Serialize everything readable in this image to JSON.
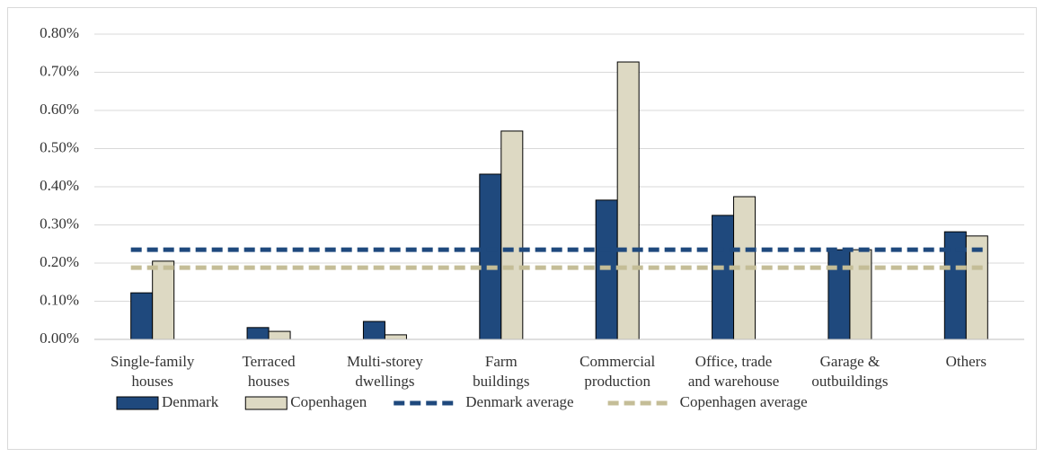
{
  "chart_data": {
    "type": "bar",
    "categories": [
      "Single-family\nhouses",
      "Terraced\nhouses",
      "Multi-storey\ndwellings",
      "Farm\nbuildings",
      "Commercial\nproduction",
      "Office, trade\nand warehouse",
      "Garage &\noutbuildings",
      "Others"
    ],
    "series": [
      {
        "name": "Denmark",
        "color": "#1f497d",
        "values": [
          0.122,
          0.031,
          0.047,
          0.433,
          0.365,
          0.325,
          0.235,
          0.282
        ]
      },
      {
        "name": "Copenhagen",
        "color": "#ddd9c3",
        "values": [
          0.205,
          0.021,
          0.012,
          0.546,
          0.727,
          0.374,
          0.235,
          0.271
        ]
      }
    ],
    "averages": [
      {
        "name": "Denmark average",
        "color": "#1f497d",
        "value": 0.235
      },
      {
        "name": "Copenhagen average",
        "color": "#c4bd97",
        "value": 0.188
      }
    ],
    "ylim": [
      0,
      0.8
    ],
    "yticks": [
      {
        "value": 0,
        "label": "0.00%"
      },
      {
        "value": 0.1,
        "label": "0.10%"
      },
      {
        "value": 0.2,
        "label": "0.20%"
      },
      {
        "value": 0.3,
        "label": "0.30%"
      },
      {
        "value": 0.4,
        "label": "0.40%"
      },
      {
        "value": 0.5,
        "label": "0.50%"
      },
      {
        "value": 0.6,
        "label": "0.60%"
      },
      {
        "value": 0.7,
        "label": "0.70%"
      },
      {
        "value": 0.8,
        "label": "0.80%"
      }
    ],
    "grid": true,
    "legend": "bottom"
  }
}
